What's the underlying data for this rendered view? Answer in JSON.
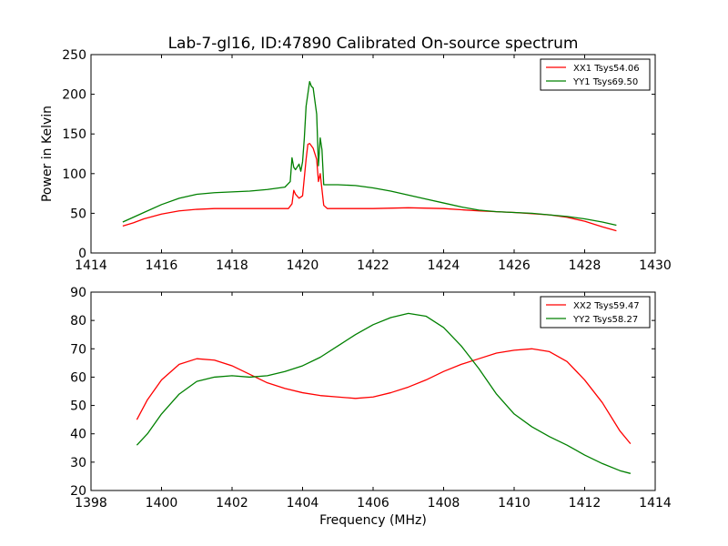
{
  "page": {
    "title": "Lab-7-gl16, ID:47890 Calibrated On-source spectrum"
  },
  "chart_data": [
    {
      "type": "line",
      "title": "Lab-7-gl16, ID:47890 Calibrated On-source spectrum",
      "xlabel": "",
      "ylabel": "Power in Kelvin",
      "xlim": [
        1414,
        1430
      ],
      "ylim": [
        0,
        250
      ],
      "xticks": [
        1414,
        1416,
        1418,
        1420,
        1422,
        1424,
        1426,
        1428,
        1430
      ],
      "yticks": [
        0,
        50,
        100,
        150,
        200,
        250
      ],
      "legend_position": "upper right",
      "series": [
        {
          "name": "XX1 Tsys54.06",
          "color": "#ff0000",
          "x": [
            1414.9,
            1415.2,
            1415.5,
            1416.0,
            1416.5,
            1417.0,
            1417.5,
            1418.0,
            1418.5,
            1419.0,
            1419.4,
            1419.6,
            1419.7,
            1419.75,
            1419.8,
            1419.9,
            1420.0,
            1420.1,
            1420.15,
            1420.2,
            1420.3,
            1420.4,
            1420.45,
            1420.5,
            1420.55,
            1420.6,
            1420.7,
            1421.0,
            1422.0,
            1423.0,
            1424.0,
            1425.0,
            1426.0,
            1427.0,
            1427.5,
            1428.0,
            1428.5,
            1428.9
          ],
          "y": [
            34,
            38,
            43,
            49,
            53,
            55,
            56,
            56,
            56,
            56,
            56,
            56,
            62,
            79,
            74,
            69,
            72,
            118,
            137,
            138,
            132,
            118,
            90,
            100,
            80,
            60,
            56,
            56,
            56,
            57,
            56,
            53,
            51,
            48,
            45,
            40,
            33,
            28
          ]
        },
        {
          "name": "YY1 Tsys69.50",
          "color": "#008000",
          "x": [
            1414.9,
            1415.5,
            1416.0,
            1416.5,
            1417.0,
            1417.5,
            1418.0,
            1418.5,
            1419.0,
            1419.5,
            1419.65,
            1419.7,
            1419.75,
            1419.8,
            1419.9,
            1419.95,
            1420.0,
            1420.05,
            1420.1,
            1420.2,
            1420.25,
            1420.3,
            1420.4,
            1420.45,
            1420.5,
            1420.55,
            1420.6,
            1420.7,
            1421.0,
            1421.5,
            1422.0,
            1422.5,
            1423.0,
            1423.5,
            1424.0,
            1424.5,
            1425.0,
            1425.5,
            1426.0,
            1426.5,
            1427.0,
            1427.5,
            1428.0,
            1428.5,
            1428.9
          ],
          "y": [
            39,
            51,
            61,
            69,
            74,
            76,
            77,
            78,
            80,
            83,
            90,
            120,
            108,
            105,
            112,
            103,
            115,
            145,
            185,
            216,
            210,
            208,
            175,
            110,
            145,
            130,
            86,
            86,
            86,
            85,
            82,
            78,
            73,
            68,
            63,
            58,
            54,
            52,
            51,
            50,
            48,
            46,
            43,
            39,
            35
          ]
        }
      ]
    },
    {
      "type": "line",
      "title": "",
      "xlabel": "Frequency (MHz)",
      "ylabel": "",
      "xlim": [
        1398,
        1414
      ],
      "ylim": [
        20,
        90
      ],
      "xticks": [
        1398,
        1400,
        1402,
        1404,
        1406,
        1408,
        1410,
        1412,
        1414
      ],
      "yticks": [
        20,
        30,
        40,
        50,
        60,
        70,
        80,
        90
      ],
      "legend_position": "upper right",
      "series": [
        {
          "name": "XX2 Tsys59.47",
          "color": "#ff0000",
          "x": [
            1399.3,
            1399.6,
            1400.0,
            1400.5,
            1401.0,
            1401.5,
            1402.0,
            1402.5,
            1403.0,
            1403.5,
            1404.0,
            1404.5,
            1405.0,
            1405.5,
            1406.0,
            1406.5,
            1407.0,
            1407.5,
            1408.0,
            1408.5,
            1409.0,
            1409.5,
            1410.0,
            1410.5,
            1411.0,
            1411.5,
            1412.0,
            1412.5,
            1413.0,
            1413.3
          ],
          "y": [
            45,
            52,
            59,
            64.5,
            66.5,
            66,
            64,
            61,
            58,
            56,
            54.5,
            53.5,
            53,
            52.5,
            53,
            54.5,
            56.5,
            59,
            62,
            64.5,
            66.5,
            68.5,
            69.5,
            70,
            69,
            65.5,
            59,
            51,
            41,
            36.5
          ]
        },
        {
          "name": "YY2 Tsys58.27",
          "color": "#008000",
          "x": [
            1399.3,
            1399.6,
            1400.0,
            1400.5,
            1401.0,
            1401.5,
            1402.0,
            1402.5,
            1403.0,
            1403.5,
            1404.0,
            1404.5,
            1405.0,
            1405.5,
            1406.0,
            1406.5,
            1407.0,
            1407.5,
            1408.0,
            1408.5,
            1409.0,
            1409.5,
            1410.0,
            1410.5,
            1411.0,
            1411.5,
            1412.0,
            1412.5,
            1413.0,
            1413.3
          ],
          "y": [
            36,
            40,
            47,
            54,
            58.5,
            60,
            60.5,
            60,
            60.5,
            62,
            64,
            67,
            71,
            75,
            78.5,
            81,
            82.5,
            81.5,
            77.5,
            71,
            63,
            54,
            47,
            42.5,
            39,
            36,
            32.5,
            29.5,
            27,
            26
          ]
        }
      ]
    }
  ]
}
